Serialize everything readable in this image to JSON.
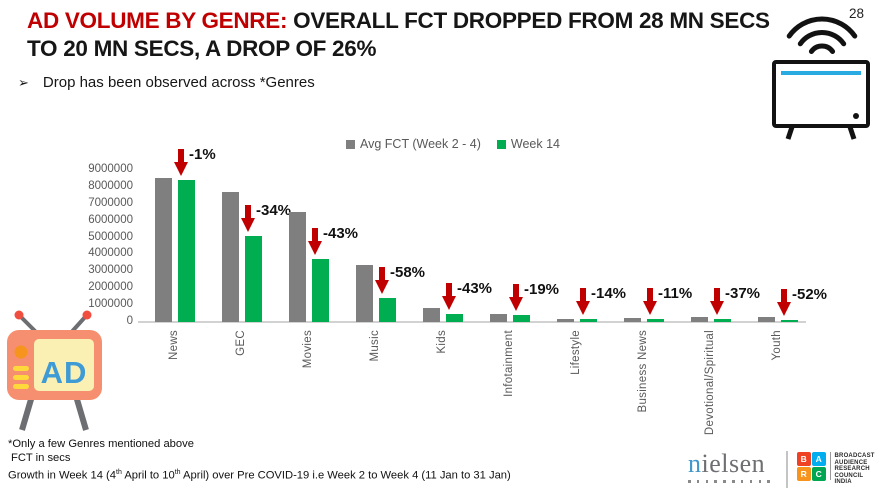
{
  "page_number": "28",
  "title": {
    "line1_red": "AD VOLUME BY GENRE:",
    "line1_black": " OVERALL FCT DROPPED FROM 28 MN SECS",
    "line2": "TO 20 MN SECS, A DROP OF 26%",
    "red_color": "#C00000"
  },
  "bullet": {
    "glyph": "➢",
    "text": "Drop has been observed across *Genres"
  },
  "chart_data": {
    "type": "bar",
    "title": "",
    "categories": [
      "News",
      "GEC",
      "Movies",
      "Music",
      "Kids",
      "Infotainment",
      "Lifestyle",
      "Business News",
      "Devotional/Spiritual",
      "Youth"
    ],
    "series": [
      {
        "name": "Avg FCT (Week 2 - 4)",
        "color": "#7F7F7F",
        "values": [
          8500000,
          7700000,
          6500000,
          3400000,
          850000,
          500000,
          200000,
          220000,
          270000,
          280000
        ]
      },
      {
        "name": "Week 14",
        "color": "#00AD50",
        "values": [
          8420000,
          5080000,
          3710000,
          1430000,
          480000,
          400000,
          170000,
          195000,
          170000,
          135000
        ]
      }
    ],
    "change_labels": [
      "-1%",
      "-34%",
      "-43%",
      "-58%",
      "-43%",
      "-19%",
      "-14%",
      "-11%",
      "-37%",
      "-52%"
    ],
    "arrow_color": "#C00000",
    "ylabel": "",
    "xlabel": "",
    "ylim": [
      0,
      9000000
    ],
    "ytick_step": 1000000,
    "grid": false,
    "legend_position": "top"
  },
  "icons": {
    "top_right": "tv-with-broadcast-signal",
    "bottom_left": "ad-television"
  },
  "footnotes": {
    "line1": "*Only a few Genres mentioned above",
    "line2": "FCT in secs",
    "line3_segments": [
      {
        "text": "Growth in Week 14 (4"
      },
      {
        "sup": "th"
      },
      {
        "text": " April to 10"
      },
      {
        "sup": "th"
      },
      {
        "text": " April) over Pre COVID-19 i.e Week 2 to Week 4 (11 Jan to 31 Jan)"
      }
    ]
  },
  "logos": {
    "nielsen": {
      "first_letter": "n",
      "rest": "ielsen",
      "dots": 10
    },
    "barc": {
      "letters": [
        "B",
        "A",
        "R",
        "C"
      ],
      "colors": [
        "#EF4123",
        "#00AEEF",
        "#F7941D",
        "#00A651"
      ],
      "caption_lines": [
        "BROADCAST",
        "AUDIENCE",
        "RESEARCH",
        "COUNCIL",
        "INDIA"
      ]
    }
  }
}
